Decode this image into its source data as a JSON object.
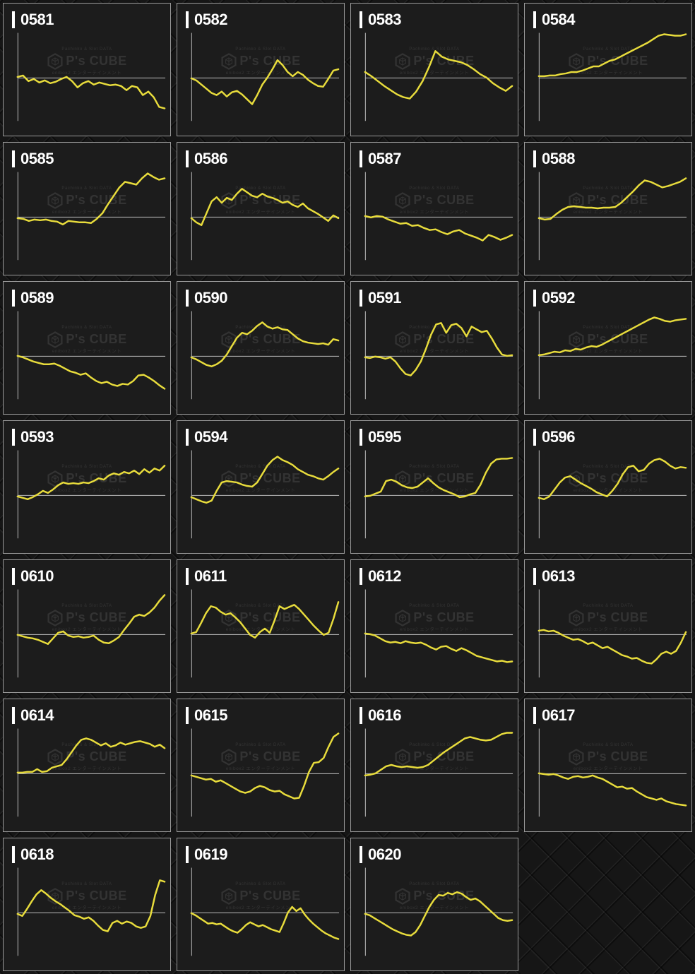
{
  "colors": {
    "page_background": "#161616",
    "cell_background": "#1c1c1c",
    "cell_border": "#9a9a9a",
    "axis": "#bdbdbd",
    "line": "#e8dc3c",
    "label_text": "#ffffff",
    "watermark": "#ffffff1a"
  },
  "watermark": {
    "top": "Pachinko & Slot DATA",
    "brand": "P's CUBE",
    "bottom": "enibox2 エンターテインメント",
    "logo_icon": "pscube-hexagon-cube-icon"
  },
  "grid": {
    "columns": 4,
    "rows": 7,
    "empty_last_slot": true
  },
  "chart_config": {
    "type": "line",
    "baseline_value": 0,
    "gridlines": false,
    "axis_tick_labels": "none",
    "y_axis_shown": true,
    "baseline_shown": true
  },
  "chart_data": [
    {
      "id": "0581",
      "type": "line",
      "values": [
        1,
        3,
        -5,
        -2,
        -7,
        -4,
        -8,
        -6,
        -2,
        1,
        -5,
        -14,
        -8,
        -5,
        -10,
        -7,
        -9,
        -11,
        -10,
        -12,
        -18,
        -12,
        -14,
        -25,
        -20,
        -28,
        -42,
        -44
      ]
    },
    {
      "id": "0582",
      "type": "line",
      "values": [
        -1,
        -4,
        -10,
        -16,
        -22,
        -25,
        -20,
        -27,
        -21,
        -19,
        -24,
        -31,
        -38,
        -25,
        -10,
        0,
        12,
        25,
        18,
        8,
        2,
        8,
        4,
        -3,
        -8,
        -12,
        -13,
        -2,
        10,
        12
      ]
    },
    {
      "id": "0583",
      "type": "line",
      "values": [
        8,
        2,
        -5,
        -12,
        -18,
        -24,
        -28,
        -30,
        -20,
        -5,
        15,
        38,
        30,
        26,
        24,
        22,
        18,
        12,
        5,
        0,
        -8,
        -14,
        -19,
        -12
      ]
    },
    {
      "id": "0584",
      "type": "line",
      "values": [
        2,
        2,
        3,
        3,
        5,
        6,
        8,
        8,
        10,
        13,
        16,
        16,
        20,
        24,
        26,
        30,
        34,
        38,
        42,
        46,
        50,
        55,
        60,
        62,
        61,
        60,
        60,
        62
      ]
    },
    {
      "id": "0585",
      "type": "line",
      "values": [
        -2,
        -3,
        -6,
        -4,
        -5,
        -4,
        -6,
        -7,
        -11,
        -6,
        -7,
        -8,
        -8,
        -9,
        -3,
        5,
        18,
        30,
        42,
        50,
        48,
        46,
        55,
        62,
        57,
        53,
        55
      ]
    },
    {
      "id": "0586",
      "type": "line",
      "values": [
        -2,
        -8,
        -12,
        5,
        22,
        28,
        20,
        27,
        24,
        33,
        40,
        35,
        30,
        28,
        33,
        29,
        27,
        24,
        20,
        22,
        17,
        14,
        19,
        12,
        8,
        4,
        -1,
        -6,
        2,
        -2
      ]
    },
    {
      "id": "0587",
      "type": "line",
      "values": [
        1,
        -1,
        1,
        0,
        -4,
        -7,
        -10,
        -9,
        -13,
        -12,
        -16,
        -19,
        -18,
        -22,
        -25,
        -21,
        -19,
        -24,
        -27,
        -30,
        -34,
        -26,
        -29,
        -33,
        -30,
        -26
      ]
    },
    {
      "id": "0588",
      "type": "line",
      "values": [
        -2,
        -4,
        -3,
        4,
        10,
        14,
        15,
        14,
        13,
        13,
        12,
        13,
        13,
        14,
        20,
        28,
        36,
        45,
        52,
        50,
        46,
        42,
        44,
        47,
        50,
        55
      ]
    },
    {
      "id": "0589",
      "type": "line",
      "values": [
        0,
        -2,
        -5,
        -8,
        -10,
        -12,
        -12,
        -11,
        -14,
        -18,
        -22,
        -24,
        -27,
        -25,
        -31,
        -36,
        -39,
        -37,
        -41,
        -43,
        -40,
        -41,
        -36,
        -28,
        -27,
        -31,
        -36,
        -42,
        -47
      ]
    },
    {
      "id": "0590",
      "type": "line",
      "values": [
        -2,
        -5,
        -9,
        -13,
        -15,
        -12,
        -7,
        2,
        14,
        26,
        33,
        31,
        36,
        43,
        48,
        42,
        39,
        41,
        38,
        37,
        31,
        25,
        21,
        19,
        18,
        17,
        18,
        16,
        24,
        22
      ]
    },
    {
      "id": "0591",
      "type": "line",
      "values": [
        -2,
        -3,
        -1,
        -2,
        -4,
        -2,
        -8,
        -18,
        -26,
        -28,
        -20,
        -8,
        10,
        30,
        45,
        47,
        33,
        44,
        46,
        40,
        28,
        42,
        38,
        34,
        36,
        25,
        12,
        2,
        0,
        1
      ]
    },
    {
      "id": "0592",
      "type": "line",
      "values": [
        1,
        2,
        4,
        6,
        5,
        8,
        7,
        10,
        9,
        12,
        14,
        13,
        16,
        20,
        24,
        28,
        32,
        36,
        40,
        44,
        48,
        52,
        55,
        53,
        50,
        49,
        51,
        52,
        53
      ]
    },
    {
      "id": "0593",
      "type": "line",
      "values": [
        -2,
        -4,
        -6,
        -3,
        1,
        6,
        3,
        8,
        14,
        18,
        16,
        17,
        16,
        18,
        17,
        20,
        24,
        22,
        28,
        31,
        29,
        33,
        31,
        35,
        30,
        37,
        32,
        38,
        35,
        42
      ]
    },
    {
      "id": "0594",
      "type": "line",
      "values": [
        -3,
        -6,
        -9,
        -11,
        -8,
        6,
        18,
        20,
        19,
        18,
        15,
        13,
        12,
        18,
        30,
        42,
        50,
        55,
        50,
        47,
        43,
        37,
        33,
        29,
        27,
        24,
        22,
        27,
        33,
        38
      ]
    },
    {
      "id": "0595",
      "type": "line",
      "values": [
        -2,
        -1,
        2,
        5,
        20,
        22,
        19,
        14,
        11,
        10,
        12,
        18,
        24,
        17,
        11,
        7,
        4,
        1,
        -3,
        -2,
        1,
        3,
        15,
        32,
        45,
        51,
        52,
        52,
        53
      ]
    },
    {
      "id": "0596",
      "type": "line",
      "values": [
        -4,
        -6,
        -2,
        8,
        18,
        25,
        27,
        22,
        17,
        13,
        9,
        4,
        1,
        -2,
        6,
        16,
        30,
        40,
        42,
        34,
        36,
        45,
        50,
        52,
        48,
        42,
        38,
        40,
        39
      ]
    },
    {
      "id": "0610",
      "type": "line",
      "values": [
        -1,
        -3,
        -5,
        -6,
        -8,
        -11,
        -14,
        -6,
        2,
        4,
        -2,
        -4,
        -3,
        -5,
        -4,
        -2,
        -8,
        -12,
        -13,
        -9,
        -4,
        6,
        15,
        25,
        28,
        26,
        31,
        38,
        48,
        56
      ]
    },
    {
      "id": "0611",
      "type": "line",
      "values": [
        1,
        3,
        16,
        30,
        40,
        38,
        32,
        28,
        30,
        24,
        17,
        8,
        -1,
        -5,
        3,
        8,
        2,
        20,
        40,
        36,
        39,
        42,
        36,
        28,
        20,
        12,
        5,
        -1,
        2,
        22,
        46
      ]
    },
    {
      "id": "0612",
      "type": "line",
      "values": [
        1,
        0,
        -2,
        -6,
        -10,
        -12,
        -11,
        -13,
        -10,
        -12,
        -13,
        -12,
        -15,
        -19,
        -22,
        -18,
        -17,
        -21,
        -24,
        -20,
        -23,
        -27,
        -31,
        -33,
        -35,
        -37,
        -39,
        -38,
        -40,
        -39
      ]
    },
    {
      "id": "0613",
      "type": "line",
      "values": [
        5,
        6,
        4,
        5,
        2,
        -2,
        -5,
        -8,
        -7,
        -10,
        -14,
        -12,
        -16,
        -20,
        -18,
        -22,
        -26,
        -30,
        -32,
        -35,
        -34,
        -38,
        -41,
        -42,
        -36,
        -28,
        -25,
        -28,
        -24,
        -12,
        3
      ]
    },
    {
      "id": "0614",
      "type": "line",
      "values": [
        1,
        1,
        2,
        2,
        6,
        2,
        3,
        8,
        10,
        12,
        20,
        30,
        40,
        48,
        50,
        48,
        44,
        40,
        43,
        38,
        40,
        44,
        41,
        43,
        45,
        46,
        44,
        42,
        38,
        41,
        36
      ]
    },
    {
      "id": "0615",
      "type": "line",
      "values": [
        -3,
        -5,
        -7,
        -9,
        -8,
        -12,
        -10,
        -14,
        -18,
        -22,
        -26,
        -28,
        -26,
        -21,
        -18,
        -20,
        -24,
        -26,
        -25,
        -30,
        -33,
        -36,
        -35,
        -18,
        2,
        15,
        16,
        22,
        38,
        52,
        57
      ]
    },
    {
      "id": "0616",
      "type": "line",
      "values": [
        -3,
        -2,
        0,
        5,
        10,
        12,
        10,
        9,
        10,
        9,
        8,
        9,
        12,
        18,
        24,
        30,
        35,
        40,
        45,
        50,
        52,
        50,
        48,
        47,
        48,
        52,
        56,
        58,
        58
      ]
    },
    {
      "id": "0617",
      "type": "line",
      "values": [
        0,
        -1,
        -2,
        -1,
        -3,
        -6,
        -8,
        -5,
        -4,
        -6,
        -5,
        -3,
        -6,
        -8,
        -12,
        -16,
        -20,
        -19,
        -22,
        -21,
        -26,
        -30,
        -34,
        -36,
        -38,
        -36,
        -40,
        -42,
        -44,
        -45,
        -46
      ]
    },
    {
      "id": "0618",
      "type": "line",
      "values": [
        -2,
        -5,
        5,
        16,
        26,
        32,
        27,
        21,
        16,
        12,
        7,
        2,
        -4,
        -6,
        -9,
        -7,
        -12,
        -19,
        -25,
        -27,
        -15,
        -12,
        -16,
        -13,
        -15,
        -20,
        -22,
        -20,
        -5,
        25,
        46,
        44
      ]
    },
    {
      "id": "0619",
      "type": "line",
      "values": [
        -1,
        -4,
        -8,
        -12,
        -16,
        -15,
        -17,
        -16,
        -20,
        -24,
        -27,
        -29,
        -24,
        -18,
        -14,
        -17,
        -20,
        -18,
        -21,
        -24,
        -26,
        -28,
        -15,
        0,
        8,
        2,
        6,
        -3,
        -10,
        -16,
        -21,
        -26,
        -30,
        -33,
        -36,
        -38
      ]
    },
    {
      "id": "0620",
      "type": "line",
      "values": [
        -2,
        -4,
        -8,
        -12,
        -16,
        -20,
        -24,
        -27,
        -30,
        -32,
        -33,
        -28,
        -18,
        -5,
        8,
        18,
        25,
        24,
        28,
        26,
        29,
        27,
        22,
        18,
        20,
        16,
        10,
        4,
        -2,
        -8,
        -11,
        -12,
        -11
      ]
    }
  ]
}
